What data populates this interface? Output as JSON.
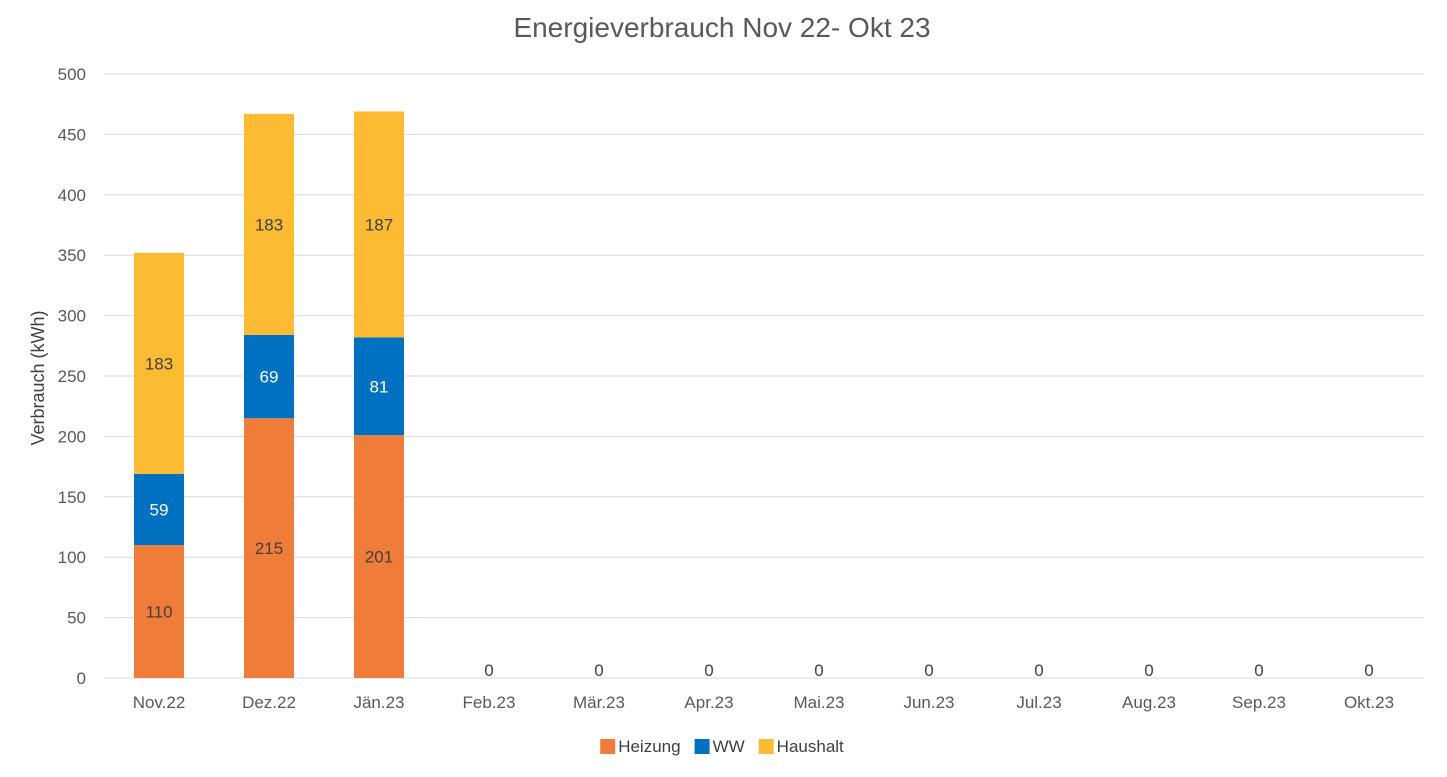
{
  "chart_data": {
    "type": "bar",
    "stacked": true,
    "title": "Energieverbrauch Nov 22- Okt 23",
    "xlabel": "",
    "ylabel": "Verbrauch (kWh)",
    "ylim": [
      0,
      500
    ],
    "yticks": [
      0,
      50,
      100,
      150,
      200,
      250,
      300,
      350,
      400,
      450,
      500
    ],
    "grid": true,
    "legend_position": "bottom",
    "categories": [
      "Nov.22",
      "Dez.22",
      "Jän.23",
      "Feb.23",
      "Mär.23",
      "Apr.23",
      "Mai.23",
      "Jun.23",
      "Jul.23",
      "Aug.23",
      "Sep.23",
      "Okt.23"
    ],
    "series": [
      {
        "name": "Heizung",
        "color": "#f07c3a",
        "label_color": "#404040",
        "values": [
          110,
          215,
          201,
          0,
          0,
          0,
          0,
          0,
          0,
          0,
          0,
          0
        ]
      },
      {
        "name": "WW",
        "color": "#0070c0",
        "label_color": "#ffffff",
        "values": [
          59,
          69,
          81,
          0,
          0,
          0,
          0,
          0,
          0,
          0,
          0,
          0
        ]
      },
      {
        "name": "Haushalt",
        "color": "#fbbc33",
        "label_color": "#404040",
        "values": [
          183,
          183,
          187,
          0,
          0,
          0,
          0,
          0,
          0,
          0,
          0,
          0
        ]
      }
    ],
    "totals": [
      352,
      467,
      469,
      0,
      0,
      0,
      0,
      0,
      0,
      0,
      0,
      0
    ]
  }
}
